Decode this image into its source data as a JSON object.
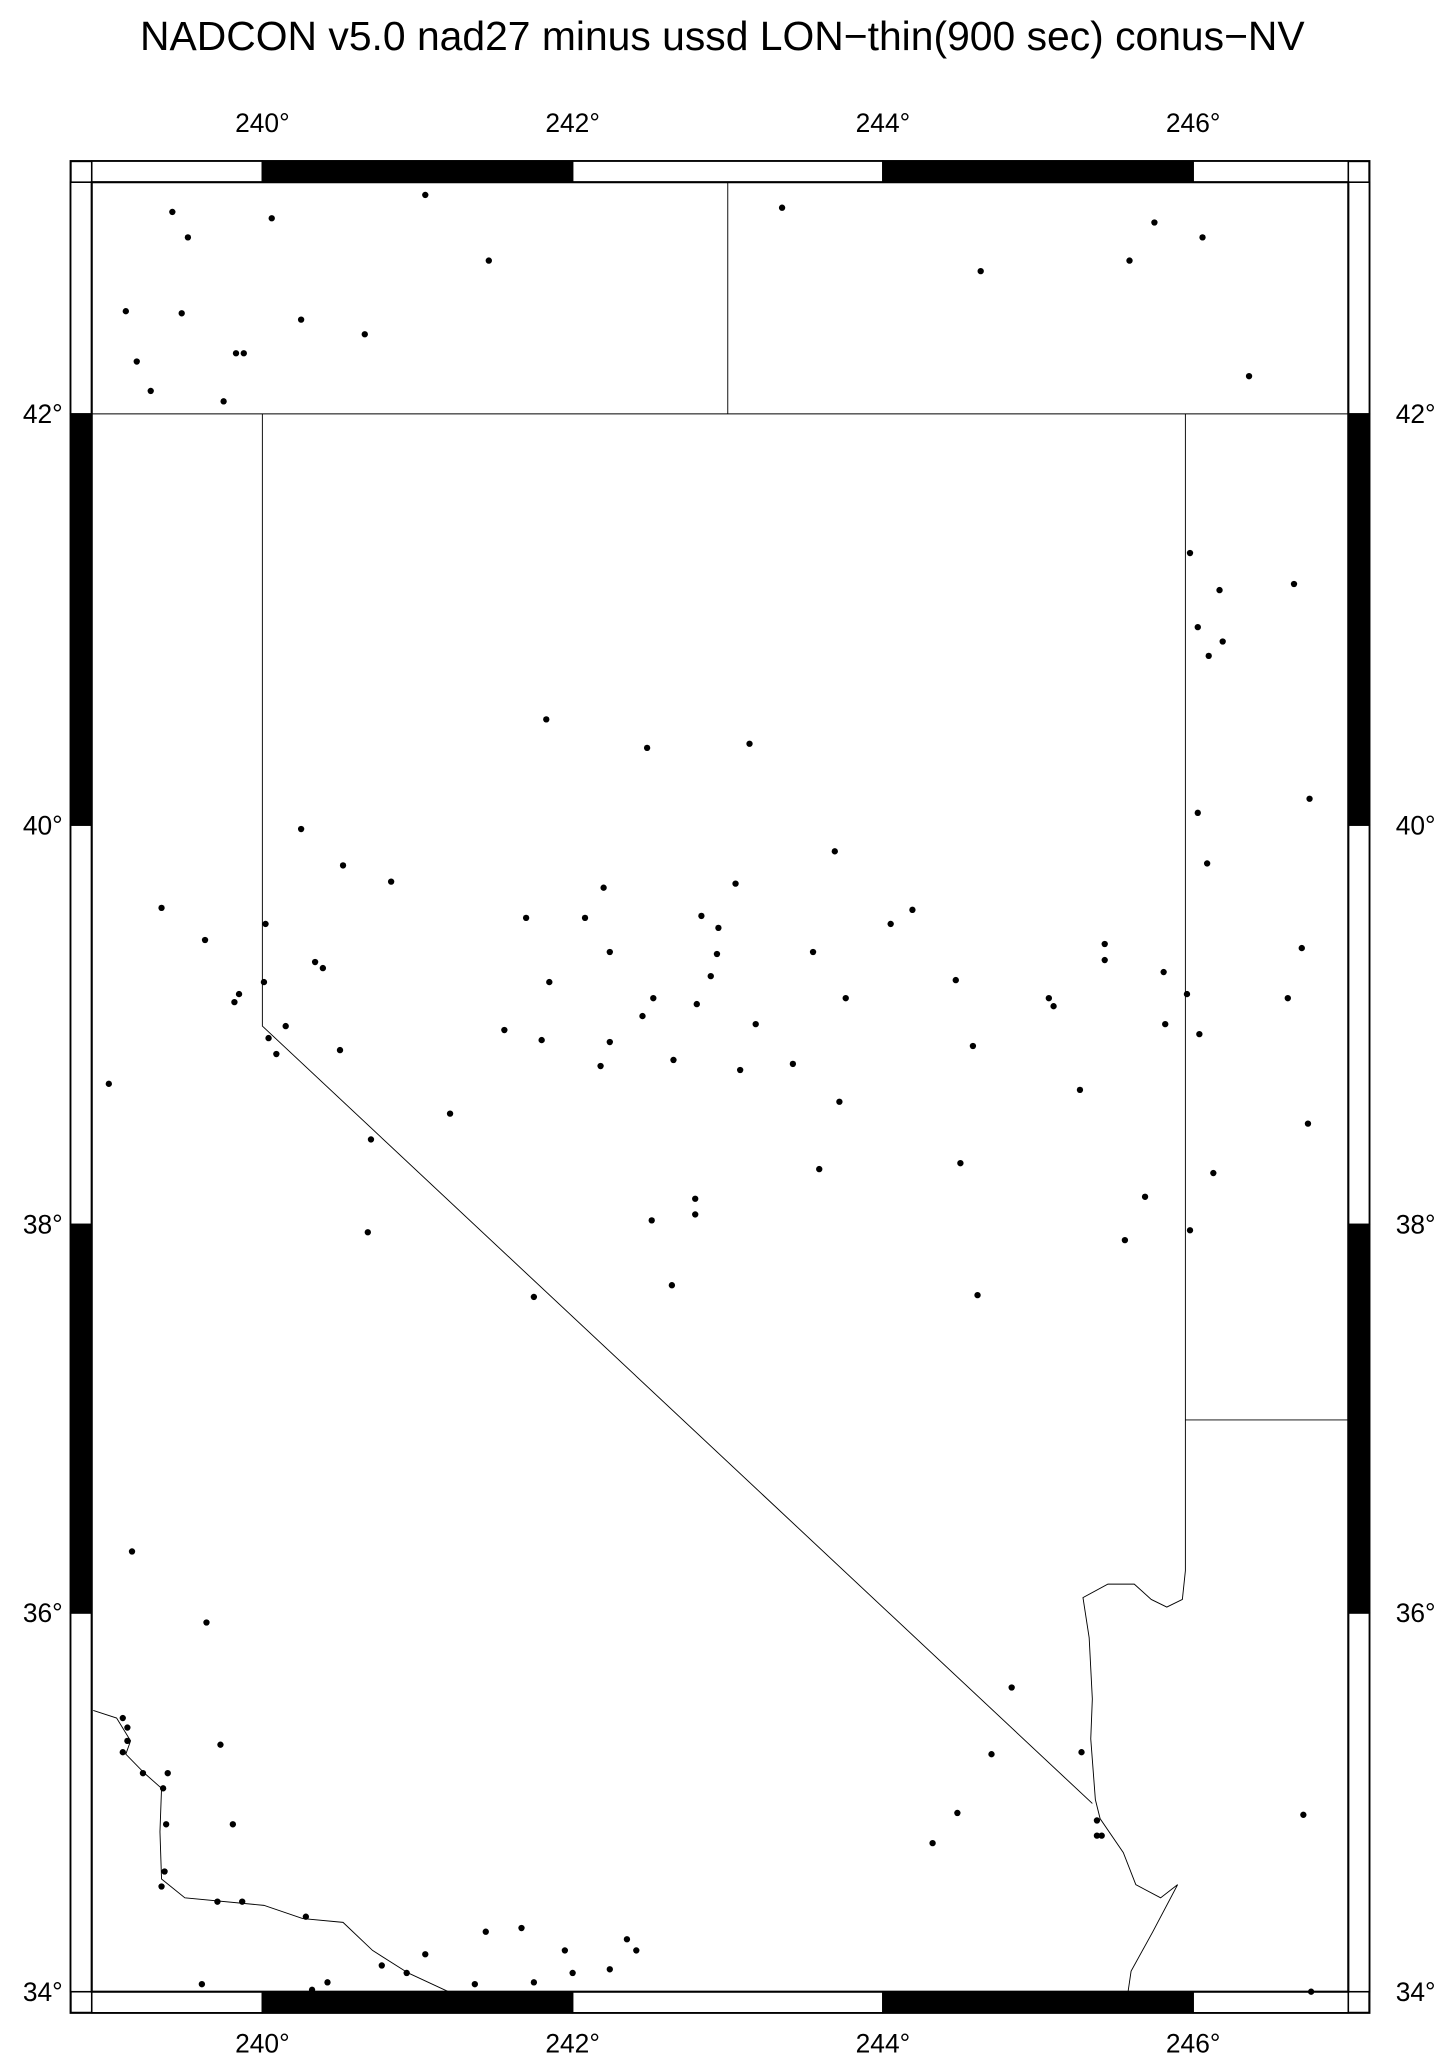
{
  "title": "NADCON v5.0 nad27 minus ussd LON−thin(900 sec) conus−NV",
  "chart_data": {
    "type": "scatter",
    "projection": "mercator",
    "region": {
      "lon": [
        238.9,
        247
      ],
      "lat": [
        34,
        43.1
      ]
    },
    "frame_style": "alternating black/white bars, 2-degree intervals",
    "x_ticks": [
      {
        "value": 240,
        "label": "240°"
      },
      {
        "value": 242,
        "label": "242°"
      },
      {
        "value": 244,
        "label": "244°"
      },
      {
        "value": 246,
        "label": "246°"
      }
    ],
    "y_ticks": [
      {
        "value": 34,
        "label": "34°"
      },
      {
        "value": 36,
        "label": "36°"
      },
      {
        "value": 38,
        "label": "38°"
      },
      {
        "value": 40,
        "label": "40°"
      },
      {
        "value": 42,
        "label": "42°"
      }
    ],
    "point_color": "#000000",
    "boundaries": [
      [
        [
          238.9,
          42
        ],
        [
          247,
          42
        ]
      ],
      [
        [
          243,
          42
        ],
        [
          243,
          43.1
        ]
      ],
      [
        [
          240,
          42
        ],
        [
          240,
          39
        ],
        [
          245.35,
          35
        ]
      ],
      [
        [
          245.95,
          42
        ],
        [
          245.95,
          36.22
        ],
        [
          245.93,
          36.07
        ],
        [
          245.83,
          36.03
        ],
        [
          245.73,
          36.07
        ],
        [
          245.62,
          36.15
        ],
        [
          245.45,
          36.15
        ],
        [
          245.29,
          36.08
        ],
        [
          245.33,
          35.87
        ],
        [
          245.35,
          35.55
        ],
        [
          245.34,
          35.34
        ],
        [
          245.37,
          35.02
        ],
        [
          245.4,
          34.92
        ],
        [
          245.55,
          34.74
        ],
        [
          245.63,
          34.57
        ],
        [
          245.79,
          34.5
        ],
        [
          245.9,
          34.57
        ],
        [
          245.74,
          34.32
        ],
        [
          245.6,
          34.11
        ],
        [
          245.58,
          34.0
        ]
      ],
      [
        [
          245.95,
          37
        ],
        [
          247,
          37
        ]
      ]
    ],
    "coastline": [
      [
        238.91,
        35.49
      ],
      [
        239.06,
        35.45
      ],
      [
        239.15,
        35.33
      ],
      [
        239.12,
        35.26
      ],
      [
        239.24,
        35.16
      ],
      [
        239.35,
        35.08
      ],
      [
        239.34,
        34.85
      ],
      [
        239.35,
        34.6
      ],
      [
        239.5,
        34.5
      ],
      [
        240.01,
        34.46
      ],
      [
        240.26,
        34.39
      ],
      [
        240.52,
        34.37
      ],
      [
        240.71,
        34.22
      ],
      [
        240.94,
        34.1
      ],
      [
        241.2,
        34.0
      ]
    ],
    "points": [
      [
        239.42,
        42.96
      ],
      [
        239.52,
        42.84
      ],
      [
        240.06,
        42.93
      ],
      [
        241.05,
        43.04
      ],
      [
        241.46,
        42.73
      ],
      [
        239.12,
        42.49
      ],
      [
        239.48,
        42.48
      ],
      [
        239.19,
        42.25
      ],
      [
        239.28,
        42.11
      ],
      [
        239.83,
        42.29
      ],
      [
        239.88,
        42.29
      ],
      [
        240.25,
        42.45
      ],
      [
        240.66,
        42.38
      ],
      [
        239.75,
        42.06
      ],
      [
        243.35,
        42.98
      ],
      [
        244.63,
        42.68
      ],
      [
        245.75,
        42.91
      ],
      [
        245.59,
        42.73
      ],
      [
        246.06,
        42.84
      ],
      [
        246.36,
        42.18
      ],
      [
        245.98,
        41.33
      ],
      [
        246.17,
        41.15
      ],
      [
        246.65,
        41.18
      ],
      [
        246.03,
        40.97
      ],
      [
        246.19,
        40.9
      ],
      [
        246.1,
        40.83
      ],
      [
        246.75,
        40.13
      ],
      [
        241.83,
        40.52
      ],
      [
        242.48,
        40.38
      ],
      [
        243.14,
        40.4
      ],
      [
        240.25,
        39.98
      ],
      [
        246.03,
        40.06
      ],
      [
        246.09,
        39.81
      ],
      [
        243.69,
        39.87
      ],
      [
        240.52,
        39.8
      ],
      [
        240.83,
        39.72
      ],
      [
        239.35,
        39.59
      ],
      [
        242.2,
        39.69
      ],
      [
        243.05,
        39.71
      ],
      [
        241.7,
        39.54
      ],
      [
        242.08,
        39.54
      ],
      [
        244.19,
        39.58
      ],
      [
        244.05,
        39.51
      ],
      [
        240.02,
        39.51
      ],
      [
        242.83,
        39.55
      ],
      [
        242.94,
        39.49
      ],
      [
        239.63,
        39.43
      ],
      [
        245.43,
        39.41
      ],
      [
        246.7,
        39.39
      ],
      [
        240.34,
        39.32
      ],
      [
        240.39,
        39.29
      ],
      [
        242.24,
        39.37
      ],
      [
        243.55,
        39.37
      ],
      [
        242.93,
        39.36
      ],
      [
        245.43,
        39.33
      ],
      [
        244.47,
        39.23
      ],
      [
        245.81,
        39.27
      ],
      [
        240.01,
        39.22
      ],
      [
        241.85,
        39.22
      ],
      [
        242.89,
        39.25
      ],
      [
        239.85,
        39.16
      ],
      [
        242.52,
        39.14
      ],
      [
        245.07,
        39.14
      ],
      [
        243.76,
        39.14
      ],
      [
        245.96,
        39.16
      ],
      [
        246.61,
        39.14
      ],
      [
        239.82,
        39.12
      ],
      [
        245.1,
        39.1
      ],
      [
        242.45,
        39.05
      ],
      [
        242.8,
        39.11
      ],
      [
        241.56,
        38.98
      ],
      [
        240.15,
        39.0
      ],
      [
        243.18,
        39.01
      ],
      [
        245.82,
        39.01
      ],
      [
        246.04,
        38.96
      ],
      [
        240.04,
        38.94
      ],
      [
        241.8,
        38.93
      ],
      [
        242.24,
        38.92
      ],
      [
        240.5,
        38.88
      ],
      [
        244.58,
        38.9
      ],
      [
        240.09,
        38.86
      ],
      [
        242.65,
        38.83
      ],
      [
        242.18,
        38.8
      ],
      [
        243.08,
        38.78
      ],
      [
        243.42,
        38.81
      ],
      [
        239.01,
        38.71
      ],
      [
        245.27,
        38.68
      ],
      [
        243.72,
        38.62
      ],
      [
        241.21,
        38.56
      ],
      [
        246.74,
        38.51
      ],
      [
        240.7,
        38.43
      ],
      [
        243.59,
        38.28
      ],
      [
        244.5,
        38.31
      ],
      [
        246.13,
        38.26
      ],
      [
        245.69,
        38.14
      ],
      [
        242.79,
        38.13
      ],
      [
        242.79,
        38.05
      ],
      [
        242.51,
        38.02
      ],
      [
        240.68,
        37.96
      ],
      [
        245.98,
        37.97
      ],
      [
        245.56,
        37.92
      ],
      [
        242.64,
        37.69
      ],
      [
        241.75,
        37.63
      ],
      [
        244.61,
        37.64
      ],
      [
        239.16,
        36.32
      ],
      [
        239.64,
        35.95
      ],
      [
        244.83,
        35.61
      ],
      [
        239.1,
        35.45
      ],
      [
        239.13,
        35.4
      ],
      [
        239.13,
        35.33
      ],
      [
        239.73,
        35.31
      ],
      [
        239.1,
        35.27
      ],
      [
        239.23,
        35.16
      ],
      [
        239.39,
        35.16
      ],
      [
        245.28,
        35.27
      ],
      [
        244.7,
        35.26
      ],
      [
        239.36,
        35.08
      ],
      [
        239.38,
        34.89
      ],
      [
        239.81,
        34.89
      ],
      [
        244.48,
        34.95
      ],
      [
        246.71,
        34.94
      ],
      [
        245.38,
        34.91
      ],
      [
        245.38,
        34.83
      ],
      [
        245.41,
        34.83
      ],
      [
        244.32,
        34.79
      ],
      [
        239.37,
        34.64
      ],
      [
        239.35,
        34.56
      ],
      [
        239.71,
        34.48
      ],
      [
        239.87,
        34.48
      ],
      [
        240.28,
        34.4
      ],
      [
        241.67,
        34.34
      ],
      [
        241.44,
        34.32
      ],
      [
        242.35,
        34.28
      ],
      [
        241.95,
        34.22
      ],
      [
        242.41,
        34.22
      ],
      [
        240.77,
        34.14
      ],
      [
        240.93,
        34.1
      ],
      [
        241.05,
        34.2
      ],
      [
        242.0,
        34.1
      ],
      [
        242.24,
        34.12
      ],
      [
        239.61,
        34.04
      ],
      [
        240.42,
        34.05
      ],
      [
        240.32,
        34.01
      ],
      [
        241.37,
        34.04
      ],
      [
        241.75,
        34.05
      ],
      [
        246.76,
        34.0
      ]
    ]
  }
}
